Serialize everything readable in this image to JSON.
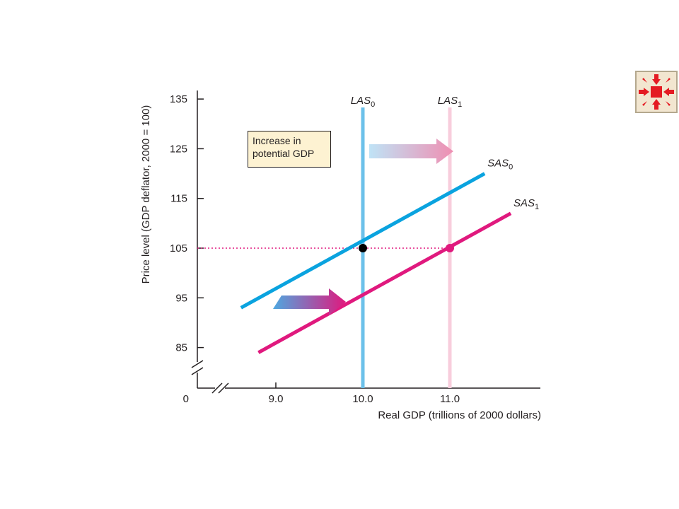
{
  "chart_data": {
    "type": "line",
    "ylabel": "Price level (GDP deflator, 2000 = 100)",
    "xlabel": "Real GDP (trillions of 2000 dollars)",
    "y_ticks": [
      "135",
      "125",
      "115",
      "105",
      "95",
      "85"
    ],
    "y_tick_values": [
      135,
      125,
      115,
      105,
      95,
      85
    ],
    "y_origin_label": "0",
    "x_ticks": [
      "9.0",
      "10.0",
      "11.0"
    ],
    "x_tick_values": [
      9.0,
      10.0,
      11.0
    ],
    "xlim": [
      8.3,
      12.0
    ],
    "ylim": [
      80,
      136
    ],
    "axis_breaks": true,
    "grid": false,
    "highlight_color": "#e0197e",
    "highlight_y": 105,
    "highlight_x": 11.0,
    "series": [
      {
        "name": "LAS",
        "sub": "0",
        "type": "vertical",
        "x": 10.0,
        "color": "#6cc1ea"
      },
      {
        "name": "LAS",
        "sub": "1",
        "type": "vertical",
        "x": 11.0,
        "color": "#f8cddc"
      },
      {
        "name": "SAS",
        "sub": "0",
        "type": "line",
        "x": [
          8.6,
          11.4
        ],
        "y": [
          93,
          120
        ],
        "color": "#0aa3df"
      },
      {
        "name": "SAS",
        "sub": "1",
        "type": "line",
        "x": [
          8.8,
          11.7
        ],
        "y": [
          84,
          112
        ],
        "color": "#e0197e"
      }
    ],
    "points": [
      {
        "x": 10.0,
        "y": 105,
        "color": "#000000"
      },
      {
        "x": 11.0,
        "y": 105,
        "color": "#e0197e"
      }
    ],
    "annotation": "Increase in potential GDP"
  },
  "controls": {
    "corner_icon": "arrows-converge-icon"
  }
}
